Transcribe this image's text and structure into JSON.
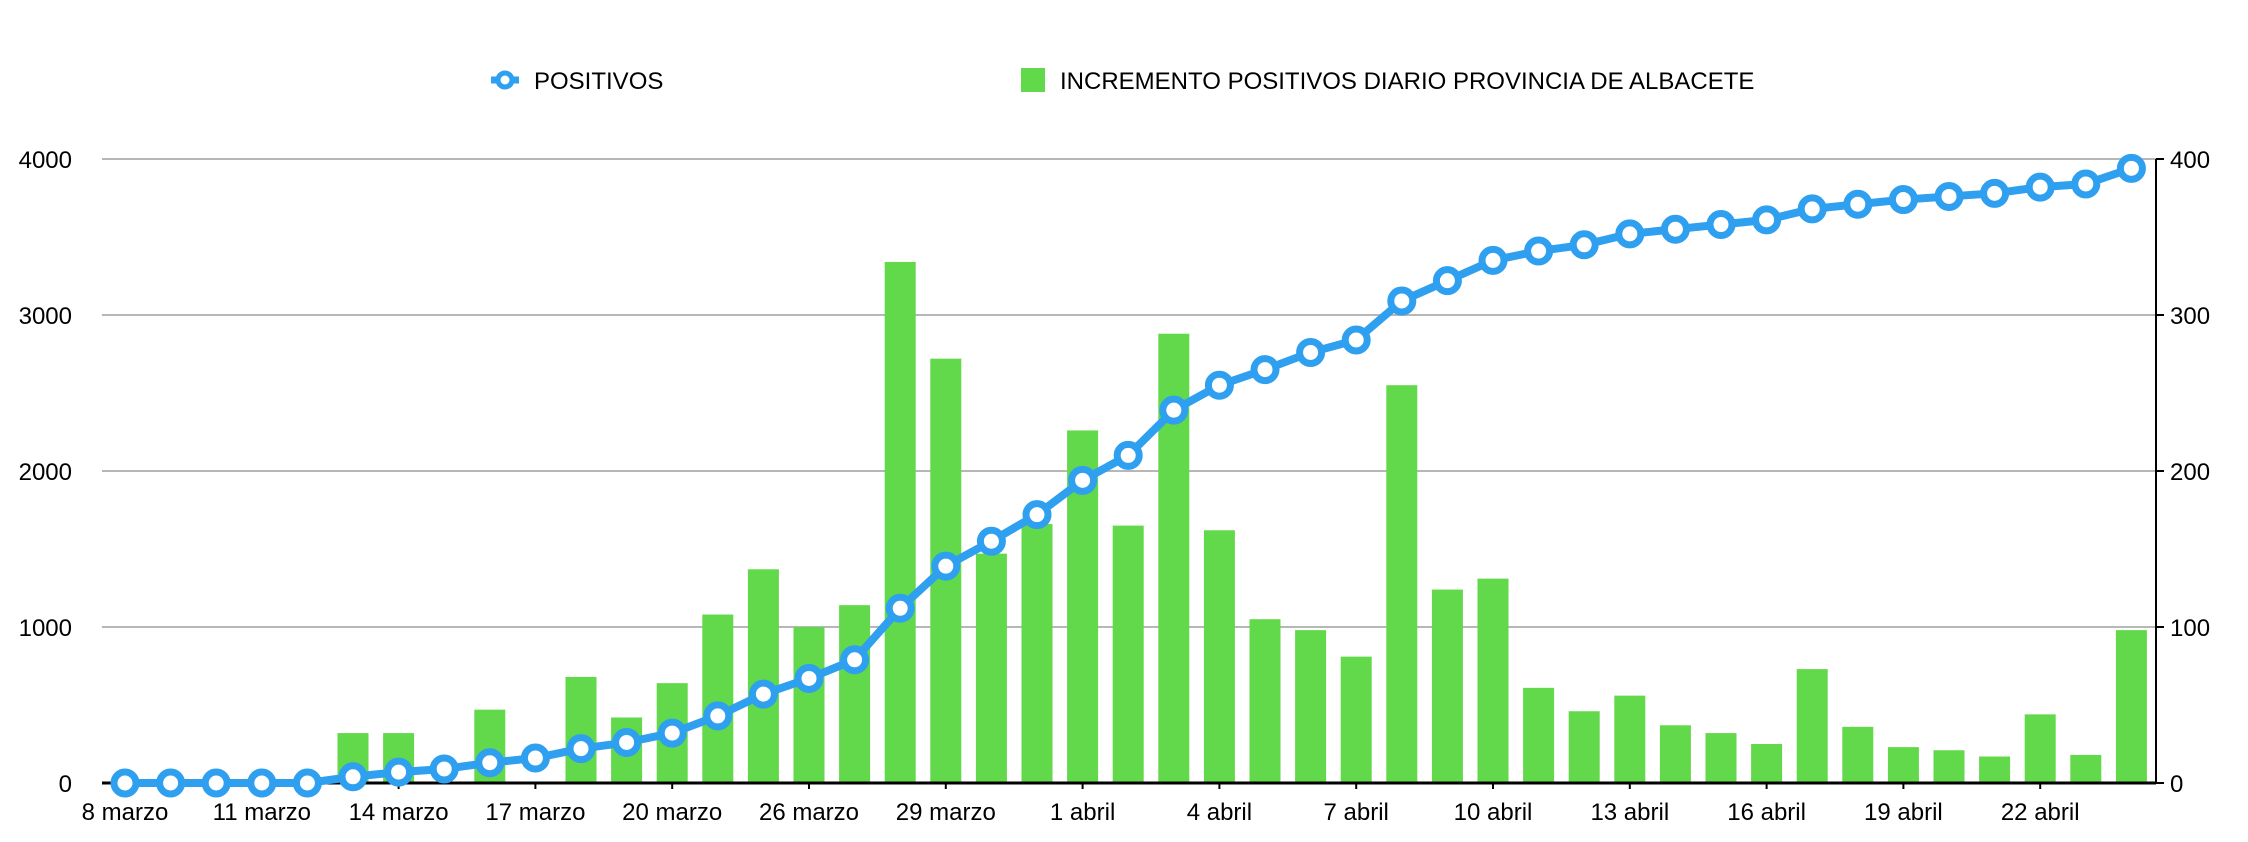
{
  "chart_data": {
    "type": "bar+line",
    "legend": {
      "placement": "top",
      "entries": [
        {
          "label": "POSITIVOS",
          "marker": "line-circle"
        },
        {
          "label": "INCREMENTO POSITIVOS DIARIO PROVINCIA DE ALBACETE",
          "marker": "square"
        }
      ]
    },
    "colors": {
      "line": "#2f9ff0",
      "bar": "#62d94a",
      "grid": "#b7b7b7",
      "axis": "#000000"
    },
    "y_left": {
      "ylim": [
        0,
        4000
      ],
      "ticks": [
        "0",
        "1000",
        "2000",
        "3000",
        "4000"
      ]
    },
    "y_right": {
      "ylim": [
        0,
        400
      ],
      "ticks": [
        "0",
        "100",
        "200",
        "300",
        "400"
      ]
    },
    "x_tick_labels": [
      "8 marzo",
      "11 marzo",
      "14 marzo",
      "17 marzo",
      "20 marzo",
      "26 marzo",
      "29 marzo",
      "1 abril",
      "4 abril",
      "7 abril",
      "10 abril",
      "13 abril",
      "16 abril",
      "19 abril",
      "22 abril"
    ],
    "series": [
      {
        "name": "POSITIVOS",
        "type": "line",
        "axis": "left",
        "values": [
          0,
          0,
          0,
          0,
          0,
          40,
          70,
          90,
          130,
          160,
          220,
          260,
          320,
          430,
          570,
          670,
          790,
          1120,
          1390,
          1550,
          1720,
          1940,
          2100,
          2390,
          2550,
          2650,
          2760,
          2840,
          3090,
          3220,
          3350,
          3410,
          3450,
          3520,
          3550,
          3580,
          3610,
          3680,
          3710,
          3740,
          3760,
          3780,
          3820,
          3840,
          3940
        ]
      },
      {
        "name": "INCREMENTO POSITIVOS DIARIO PROVINCIA DE ALBACETE",
        "type": "bar",
        "axis": "right",
        "values": [
          0,
          0,
          0,
          0,
          0,
          32,
          32,
          0,
          47,
          0,
          68,
          42,
          64,
          108,
          137,
          100,
          114,
          334,
          272,
          147,
          166,
          226,
          165,
          288,
          162,
          105,
          98,
          81,
          255,
          124,
          131,
          61,
          46,
          56,
          37,
          32,
          25,
          73,
          36,
          23,
          21,
          17,
          44,
          18,
          98
        ]
      }
    ]
  }
}
